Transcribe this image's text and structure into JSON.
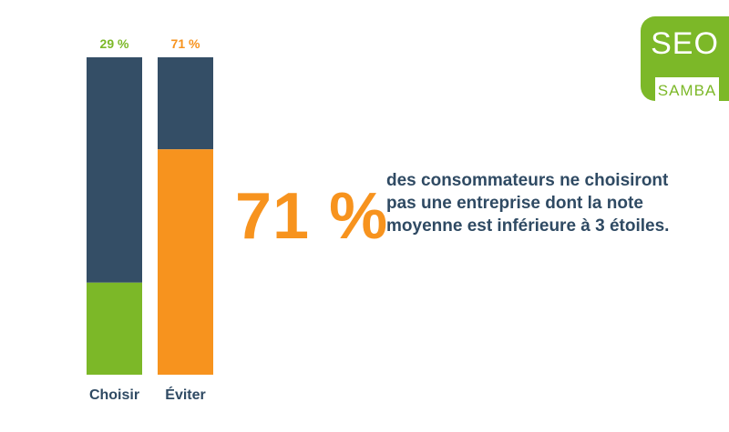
{
  "chart_data": {
    "type": "bar",
    "stacked": true,
    "categories": [
      "Choisir",
      "Éviter"
    ],
    "values": [
      29,
      71
    ],
    "value_labels": [
      "29 %",
      "71 %"
    ],
    "ylim": [
      0,
      100
    ],
    "colors": [
      "#7cb828",
      "#f7931e"
    ],
    "remainder_color": "#344e66",
    "grid": false
  },
  "highlight": {
    "value": "71 %",
    "text": "des consommateurs ne choisiront pas une entreprise dont la note moyenne est inférieure à 3 étoiles."
  },
  "logo": {
    "line1": "SEO",
    "line2": "SAMBA"
  },
  "colors": {
    "navy": "#344e66",
    "green": "#7cb828",
    "orange": "#f7931e",
    "text": "#2f4a63"
  }
}
